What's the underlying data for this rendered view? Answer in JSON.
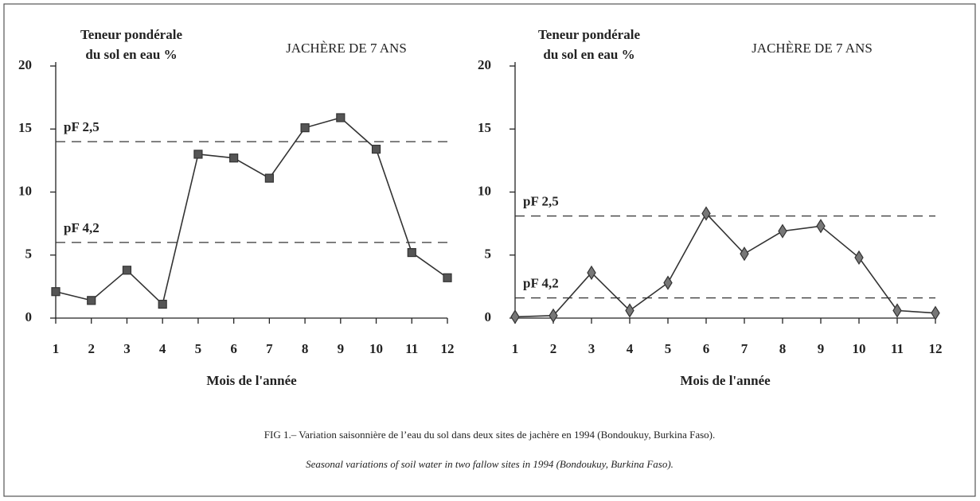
{
  "chart_data": [
    {
      "type": "line",
      "title": "JACHÈRE DE 7 ANS",
      "y_label": [
        "Teneur pondérale",
        "du sol en eau %"
      ],
      "x_label": "Mois de l'année",
      "x": [
        1,
        2,
        3,
        4,
        5,
        6,
        7,
        8,
        9,
        10,
        11,
        12
      ],
      "series": [
        {
          "color": "#333333",
          "marker": "square",
          "values": [
            2.1,
            1.4,
            3.8,
            1.1,
            13.0,
            12.7,
            11.1,
            15.1,
            15.9,
            13.4,
            5.2,
            3.2
          ]
        }
      ],
      "reference_lines": [
        {
          "label": "pF 2,5",
          "value": 14
        },
        {
          "label": "pF 4,2",
          "value": 6
        }
      ],
      "xlim": [
        1,
        12
      ],
      "xticks": [
        1,
        2,
        3,
        4,
        5,
        6,
        7,
        8,
        9,
        10,
        11,
        12
      ],
      "ylim": [
        0,
        20
      ],
      "yticks": [
        0,
        5,
        10,
        15,
        20
      ]
    },
    {
      "type": "line",
      "title": "JACHÈRE DE 7 ANS",
      "y_label": [
        "Teneur pondérale",
        "du sol en eau %"
      ],
      "x_label": "Mois de l'année",
      "x": [
        1,
        2,
        3,
        4,
        5,
        6,
        7,
        8,
        9,
        10,
        11,
        12
      ],
      "series": [
        {
          "color": "#333333",
          "marker": "diamond",
          "values": [
            0.1,
            0.2,
            3.6,
            0.6,
            2.8,
            8.3,
            5.1,
            6.9,
            7.3,
            4.8,
            0.6,
            0.4
          ]
        }
      ],
      "reference_lines": [
        {
          "label": "pF 2,5",
          "value": 8.1
        },
        {
          "label": "pF 4,2",
          "value": 1.6
        }
      ],
      "xlim": [
        1,
        12
      ],
      "xticks": [
        1,
        2,
        3,
        4,
        5,
        6,
        7,
        8,
        9,
        10,
        11,
        12
      ],
      "ylim": [
        0,
        20
      ],
      "yticks": [
        0,
        5,
        10,
        15,
        20
      ]
    }
  ],
  "caption": [
    "FIG 1.– Variation saisonnière de l’eau du sol dans deux sites de jachère en 1994 (Bondoukuy, Burkina Faso).",
    "Seasonal variations of soil water in two fallow sites in 1994 (Bondoukuy, Burkina Faso)."
  ]
}
